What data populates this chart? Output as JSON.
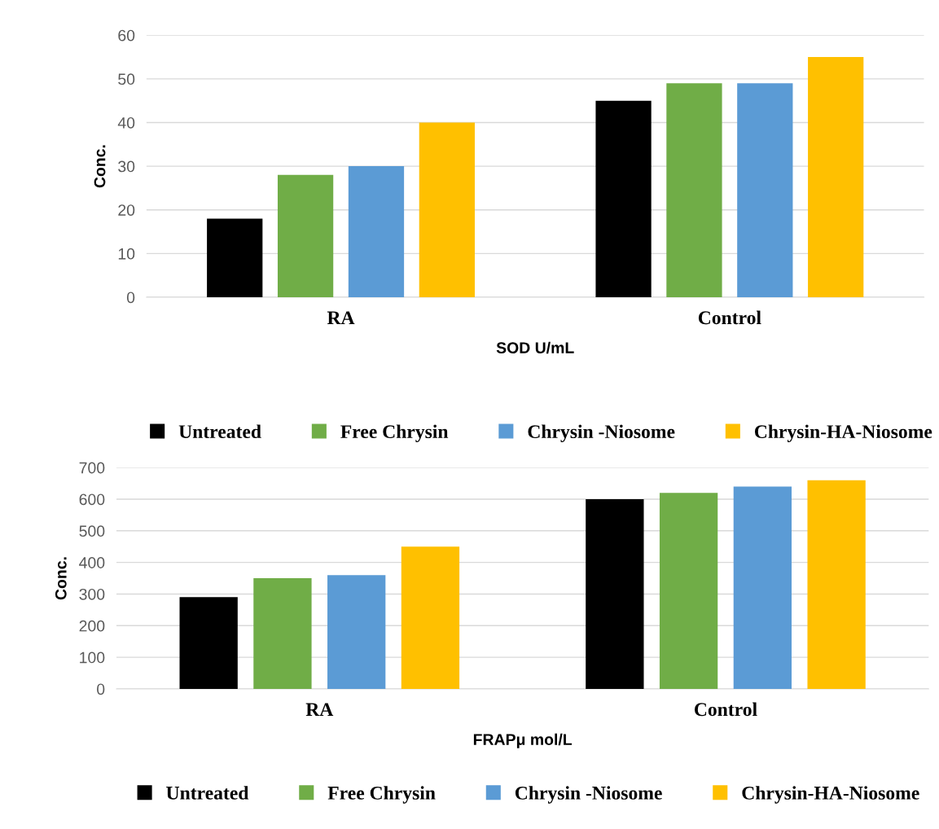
{
  "chart_data": [
    {
      "type": "bar",
      "xlabel": "SOD U/mL",
      "ylabel": "Conc.",
      "categories": [
        "RA",
        "Control"
      ],
      "ylim": [
        0,
        60
      ],
      "yticks": [
        0,
        10,
        20,
        30,
        40,
        50,
        60
      ],
      "grid": "y",
      "legend": "bottom",
      "series": [
        {
          "name": "Untreated",
          "color": "#000000",
          "values": [
            18,
            45
          ]
        },
        {
          "name": "Free Chrysin",
          "color": "#70ad47",
          "values": [
            28,
            49
          ]
        },
        {
          "name": "Chrysin -Niosome",
          "color": "#5b9bd5",
          "values": [
            30,
            49
          ]
        },
        {
          "name": "Chrysin-HA-Niosome",
          "color": "#ffc000",
          "values": [
            40,
            55
          ]
        }
      ]
    },
    {
      "type": "bar",
      "xlabel": "FRAPμ mol/L",
      "ylabel": "Conc.",
      "categories": [
        "RA",
        "Control"
      ],
      "ylim": [
        0,
        700
      ],
      "yticks": [
        0,
        100,
        200,
        300,
        400,
        500,
        600,
        700
      ],
      "grid": "y",
      "legend": "bottom",
      "series": [
        {
          "name": "Untreated",
          "color": "#000000",
          "values": [
            290,
            600
          ]
        },
        {
          "name": "Free Chrysin",
          "color": "#70ad47",
          "values": [
            350,
            620
          ]
        },
        {
          "name": "Chrysin -Niosome",
          "color": "#5b9bd5",
          "values": [
            360,
            640
          ]
        },
        {
          "name": "Chrysin-HA-Niosome",
          "color": "#ffc000",
          "values": [
            450,
            660
          ]
        }
      ]
    }
  ]
}
